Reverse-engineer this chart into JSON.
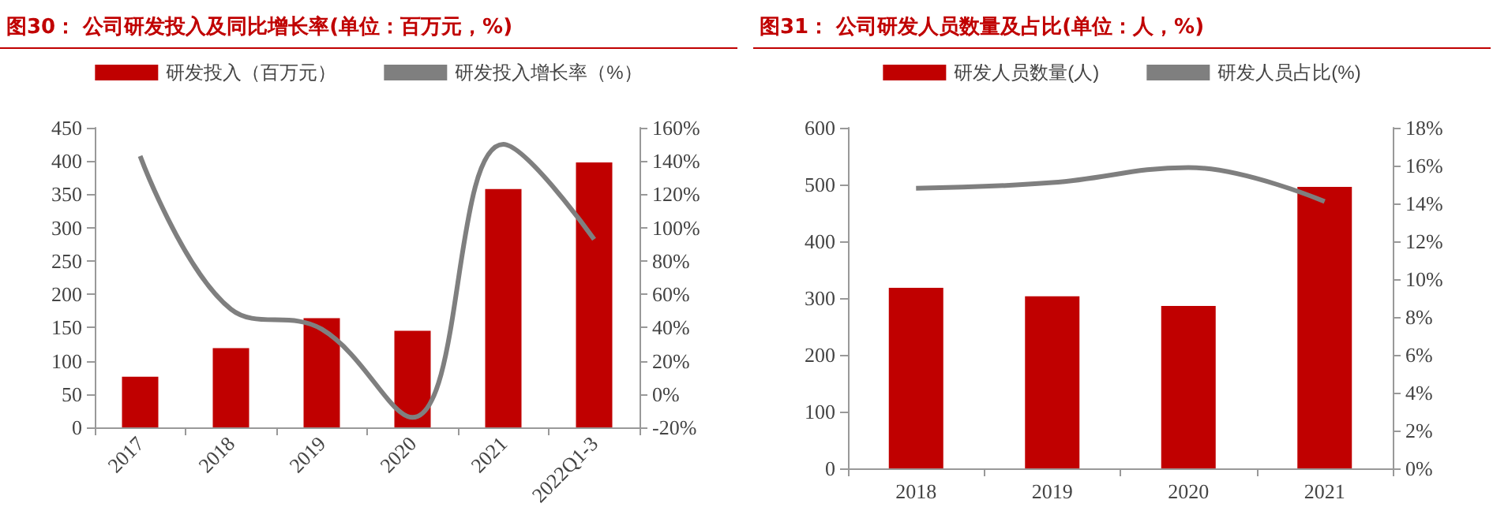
{
  "chart_data": [
    {
      "type": "bar",
      "title": "图30：  公司研发投入及同比增长率(单位：百万元，%)",
      "categories": [
        "2017",
        "2018",
        "2019",
        "2020",
        "2021",
        "2022Q1-3"
      ],
      "series": [
        {
          "name": "研发投入（百万元）",
          "color": "#c00000",
          "values": [
            76,
            119,
            164,
            145,
            358,
            398
          ]
        },
        {
          "name": "研发投入增长率（%）",
          "type": "line",
          "axis": "y2",
          "color": "#7f7f7f",
          "values": [
            143,
            51,
            39,
            -14,
            150,
            93
          ]
        }
      ],
      "ylim": [
        0,
        450
      ],
      "yticks": [
        0,
        50,
        100,
        150,
        200,
        250,
        300,
        350,
        400,
        450
      ],
      "y2lim": [
        -20,
        160
      ],
      "y2ticks": [
        {
          "value": -20,
          "label": "-20%"
        },
        {
          "value": 0,
          "label": "0%"
        },
        {
          "value": 20,
          "label": "20%"
        },
        {
          "value": 40,
          "label": "40%"
        },
        {
          "value": 60,
          "label": "60%"
        },
        {
          "value": 80,
          "label": "80%"
        },
        {
          "value": 100,
          "label": "100%"
        },
        {
          "value": 120,
          "label": "120%"
        },
        {
          "value": 140,
          "label": "140%"
        },
        {
          "value": 160,
          "label": "160%"
        }
      ],
      "legend": "top",
      "grid": false,
      "marker": "none",
      "line_style": "solid"
    },
    {
      "type": "bar",
      "title": "图31：  公司研发人员数量及占比(单位：人，%)",
      "categories": [
        "2018",
        "2019",
        "2020",
        "2021"
      ],
      "series": [
        {
          "name": "研发人员数量(人)",
          "color": "#c00000",
          "values": [
            318,
            303,
            286,
            496
          ]
        },
        {
          "name": "研发人员占比(%)",
          "type": "line",
          "axis": "y2",
          "color": "#7f7f7f",
          "values": [
            14.8,
            15.1,
            15.9,
            14.1
          ]
        }
      ],
      "ylim": [
        0,
        600
      ],
      "yticks": [
        0,
        100,
        200,
        300,
        400,
        500,
        600
      ],
      "y2lim": [
        0,
        18
      ],
      "y2ticks": [
        {
          "value": 0,
          "label": "0%"
        },
        {
          "value": 2,
          "label": "2%"
        },
        {
          "value": 4,
          "label": "4%"
        },
        {
          "value": 6,
          "label": "6%"
        },
        {
          "value": 8,
          "label": "8%"
        },
        {
          "value": 10,
          "label": "10%"
        },
        {
          "value": 12,
          "label": "12%"
        },
        {
          "value": 14,
          "label": "14%"
        },
        {
          "value": 16,
          "label": "16%"
        },
        {
          "value": 18,
          "label": "18%"
        }
      ],
      "legend": "top",
      "grid": false,
      "marker": "none",
      "line_style": "solid"
    }
  ]
}
